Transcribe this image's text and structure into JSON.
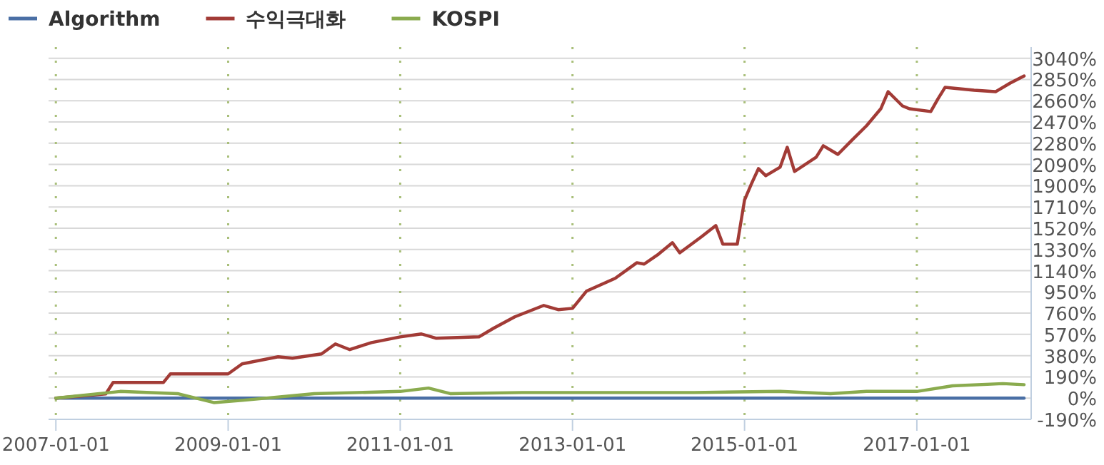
{
  "chart_data": {
    "type": "line",
    "legend": "top left",
    "grid": true,
    "line_style": "solid",
    "xlim": [
      "2006-12",
      "2018-05"
    ],
    "xticks": [
      {
        "value": "2007-01-01",
        "label": "2007-01-01"
      },
      {
        "value": "2009-01-01",
        "label": "2009-01-01"
      },
      {
        "value": "2011-01-01",
        "label": "2011-01-01"
      },
      {
        "value": "2013-01-01",
        "label": "2013-01-01"
      },
      {
        "value": "2015-01-01",
        "label": "2015-01-01"
      },
      {
        "value": "2017-01-01",
        "label": "2017-01-01"
      }
    ],
    "ylim": [
      -190,
      3140
    ],
    "yticks": [
      {
        "value": -190,
        "label": "-190%"
      },
      {
        "value": 0,
        "label": "0%"
      },
      {
        "value": 190,
        "label": "190%"
      },
      {
        "value": 380,
        "label": "380%"
      },
      {
        "value": 570,
        "label": "570%"
      },
      {
        "value": 760,
        "label": "760%"
      },
      {
        "value": 950,
        "label": "950%"
      },
      {
        "value": 1140,
        "label": "1140%"
      },
      {
        "value": 1330,
        "label": "1330%"
      },
      {
        "value": 1520,
        "label": "1520%"
      },
      {
        "value": 1710,
        "label": "1710%"
      },
      {
        "value": 1900,
        "label": "1900%"
      },
      {
        "value": 2090,
        "label": "2090%"
      },
      {
        "value": 2280,
        "label": "2280%"
      },
      {
        "value": 2470,
        "label": "2470%"
      },
      {
        "value": 2660,
        "label": "2660%"
      },
      {
        "value": 2850,
        "label": "2850%"
      },
      {
        "value": 3040,
        "label": "3040%"
      }
    ],
    "series": [
      {
        "name": "Algorithm",
        "color": "#4a6fa5",
        "x": [
          "2007-01",
          "2018-04"
        ],
        "values": [
          0,
          0
        ]
      },
      {
        "name": "수익극대화",
        "color": "#a23b36",
        "x": [
          "2007-01",
          "2007-08",
          "2007-09",
          "2008-04",
          "2008-05",
          "2009-01",
          "2009-03",
          "2009-08",
          "2009-10",
          "2010-02",
          "2010-04",
          "2010-06",
          "2010-09",
          "2011-01",
          "2011-04",
          "2011-06",
          "2011-12",
          "2012-02",
          "2012-05",
          "2012-09",
          "2012-11",
          "2013-01",
          "2013-03",
          "2013-07",
          "2013-10",
          "2013-11",
          "2014-01",
          "2014-03",
          "2014-04",
          "2014-07",
          "2014-09",
          "2014-10",
          "2014-12",
          "2015-01",
          "2015-02",
          "2015-03",
          "2015-04",
          "2015-06",
          "2015-07",
          "2015-08",
          "2015-11",
          "2015-12",
          "2016-02",
          "2016-04",
          "2016-06",
          "2016-08",
          "2016-09",
          "2016-11",
          "2016-12",
          "2017-03",
          "2017-04",
          "2017-05",
          "2017-09",
          "2017-12",
          "2018-02",
          "2018-04"
        ],
        "values": [
          0,
          38,
          140,
          140,
          217,
          217,
          306,
          370,
          357,
          395,
          485,
          434,
          497,
          548,
          574,
          536,
          548,
          625,
          727,
          829,
          791,
          803,
          956,
          1071,
          1211,
          1199,
          1288,
          1390,
          1300,
          1441,
          1543,
          1377,
          1377,
          1772,
          1925,
          2053,
          1989,
          2066,
          2244,
          2027,
          2155,
          2257,
          2180,
          2308,
          2435,
          2588,
          2741,
          2614,
          2588,
          2563,
          2678,
          2780,
          2754,
          2741,
          2818,
          2882
        ]
      },
      {
        "name": "KOSPI",
        "color": "#8aab4e",
        "x": [
          "2007-01",
          "2007-10",
          "2008-06",
          "2008-11",
          "2009-03",
          "2010-01",
          "2011-01",
          "2011-05",
          "2011-08",
          "2012-06",
          "2013-06",
          "2014-06",
          "2015-06",
          "2016-01",
          "2016-06",
          "2017-01",
          "2017-06",
          "2018-01",
          "2018-04"
        ],
        "values": [
          0,
          60,
          40,
          -40,
          -20,
          40,
          60,
          90,
          40,
          50,
          50,
          50,
          60,
          40,
          60,
          60,
          110,
          130,
          120
        ]
      }
    ]
  }
}
